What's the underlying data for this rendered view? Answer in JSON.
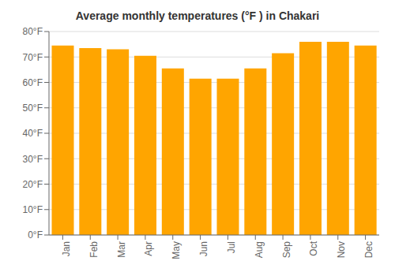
{
  "chart_data": {
    "type": "bar",
    "title": "Average monthly temperatures (°F ) in Chakari",
    "categories": [
      "Jan",
      "Feb",
      "Mar",
      "Apr",
      "May",
      "Jun",
      "Jul",
      "Aug",
      "Sep",
      "Oct",
      "Nov",
      "Dec"
    ],
    "values": [
      74.5,
      73.5,
      73.0,
      70.5,
      65.5,
      61.5,
      61.5,
      65.5,
      71.5,
      76.0,
      76.0,
      74.5
    ],
    "color": "#FFA500",
    "ylim": [
      0,
      80
    ],
    "yticks": [
      {
        "value": 0,
        "label": "0°F"
      },
      {
        "value": 10,
        "label": "10°F"
      },
      {
        "value": 20,
        "label": "20°F"
      },
      {
        "value": 30,
        "label": "30°F"
      },
      {
        "value": 40,
        "label": "40°F"
      },
      {
        "value": 50,
        "label": "50°F"
      },
      {
        "value": 60,
        "label": "60°F"
      },
      {
        "value": 70,
        "label": "70°F"
      },
      {
        "value": 80,
        "label": "80°F"
      }
    ],
    "grid": true
  }
}
